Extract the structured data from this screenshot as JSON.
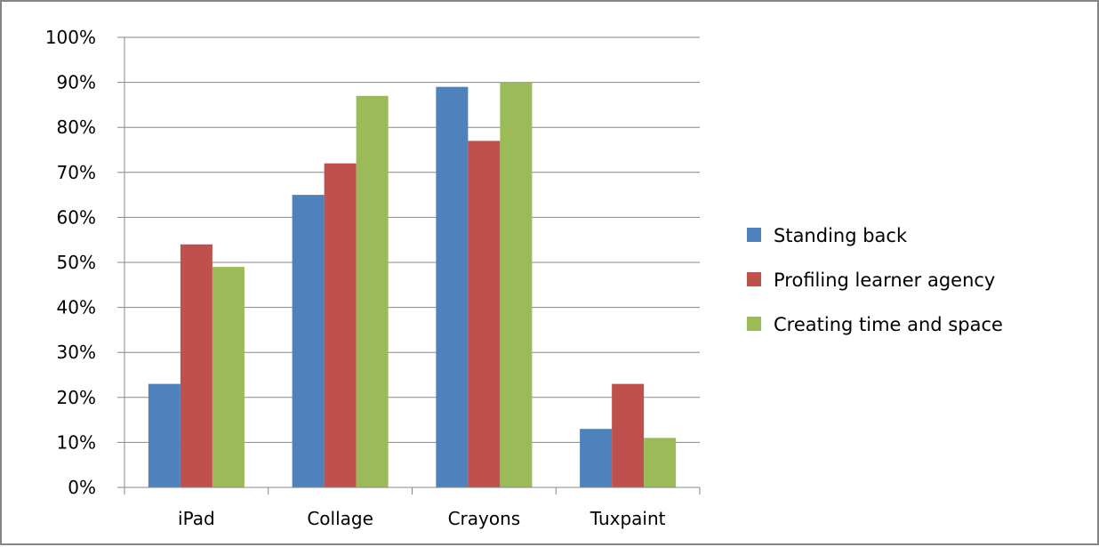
{
  "chart_data": {
    "type": "bar",
    "title": "",
    "xlabel": "",
    "ylabel": "",
    "categories": [
      "iPad",
      "Collage",
      "Crayons",
      "Tuxpaint"
    ],
    "series": [
      {
        "name": "Standing back",
        "color": "#4F81BD",
        "values": [
          23,
          65,
          89,
          13
        ]
      },
      {
        "name": "Profiling learner agency",
        "color": "#C0504D",
        "values": [
          54,
          72,
          77,
          23
        ]
      },
      {
        "name": "Creating time and space",
        "color": "#9BBB59",
        "values": [
          49,
          87,
          90,
          11
        ]
      }
    ],
    "ylim": [
      0,
      100
    ],
    "ytick_step": 10,
    "ytick_labels": [
      "0%",
      "10%",
      "20%",
      "30%",
      "40%",
      "50%",
      "60%",
      "70%",
      "80%",
      "90%",
      "100%"
    ],
    "grid": true,
    "legend_position": "right"
  }
}
